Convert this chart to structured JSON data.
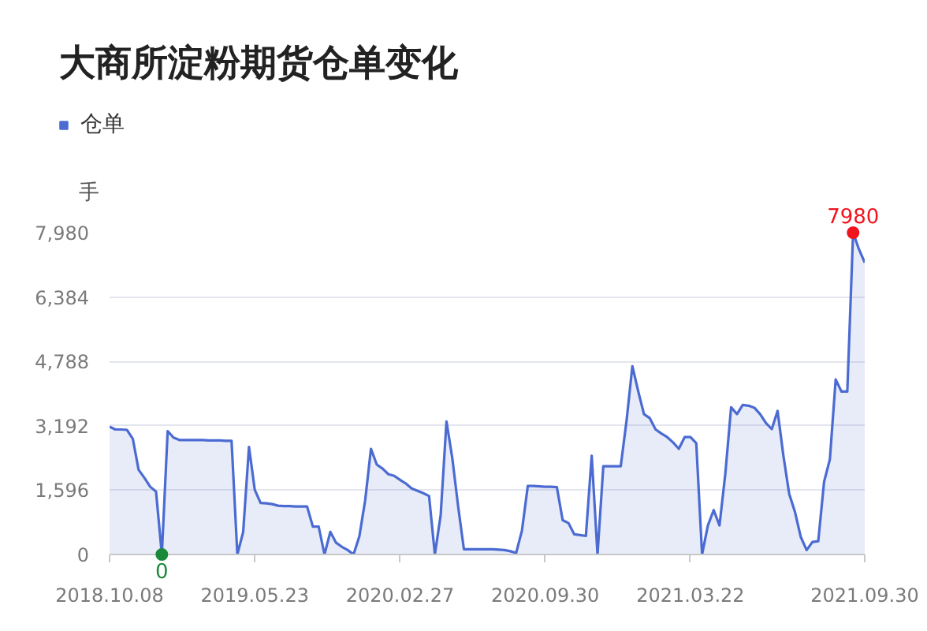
{
  "chart_data": {
    "type": "area",
    "title": "大商所淀粉期货仓单变化",
    "ylabel": "手",
    "categories": [
      "2018.10.08",
      null,
      null,
      null,
      null,
      null,
      null,
      null,
      null,
      null,
      null,
      null,
      null,
      null,
      null,
      null,
      null,
      null,
      null,
      null,
      null,
      null,
      null,
      null,
      null,
      "2019.05.23",
      null,
      null,
      null,
      null,
      null,
      null,
      null,
      null,
      null,
      null,
      null,
      null,
      null,
      null,
      null,
      null,
      null,
      null,
      null,
      null,
      null,
      null,
      null,
      null,
      "2020.02.27",
      null,
      null,
      null,
      null,
      null,
      null,
      null,
      null,
      null,
      null,
      null,
      null,
      null,
      null,
      null,
      null,
      null,
      null,
      null,
      null,
      null,
      null,
      null,
      null,
      "2020.09.30",
      null,
      null,
      null,
      null,
      null,
      null,
      null,
      null,
      null,
      null,
      null,
      null,
      null,
      null,
      null,
      null,
      null,
      null,
      null,
      null,
      null,
      null,
      null,
      null,
      "2021.03.22",
      null,
      null,
      null,
      null,
      null,
      null,
      null,
      null,
      null,
      null,
      null,
      null,
      null,
      null,
      null,
      null,
      null,
      null,
      null,
      null,
      null,
      null,
      null,
      null,
      null,
      null,
      null,
      null,
      null,
      "2021.09.30"
    ],
    "series": [
      {
        "name": "仓单",
        "color": "#4b6bd2",
        "values": [
          3170,
          3100,
          3100,
          3090,
          2870,
          2100,
          1900,
          1680,
          1560,
          0,
          3060,
          2900,
          2840,
          2840,
          2840,
          2840,
          2840,
          2830,
          2830,
          2830,
          2820,
          2820,
          0,
          560,
          2670,
          1600,
          1280,
          1270,
          1250,
          1210,
          1200,
          1200,
          1190,
          1190,
          1190,
          690,
          690,
          0,
          560,
          290,
          190,
          110,
          0,
          450,
          1340,
          2620,
          2230,
          2130,
          1990,
          1950,
          1850,
          1760,
          1640,
          1580,
          1520,
          1450,
          0,
          980,
          3300,
          2390,
          1200,
          130,
          130,
          130,
          130,
          130,
          130,
          120,
          110,
          80,
          40,
          600,
          1700,
          1700,
          1690,
          1680,
          1680,
          1670,
          850,
          780,
          500,
          480,
          460,
          2450,
          0,
          2190,
          2190,
          2190,
          2190,
          3320,
          4670,
          4050,
          3480,
          3380,
          3100,
          3000,
          2910,
          2780,
          2620,
          2910,
          2910,
          2760,
          0,
          720,
          1100,
          720,
          2000,
          3650,
          3480,
          3710,
          3690,
          3640,
          3480,
          3260,
          3110,
          3560,
          2450,
          1500,
          1050,
          430,
          110,
          310,
          330,
          1800,
          2360,
          4340,
          4040,
          4040,
          7980,
          7570,
          7240
        ]
      }
    ],
    "ylim": [
      0,
      7980
    ],
    "yticks": [
      0,
      {
        "value": 1596,
        "label": "1,596"
      },
      {
        "value": 3192,
        "label": "3,192"
      },
      {
        "value": 4788,
        "label": "4,788"
      },
      {
        "value": 6384,
        "label": "6,384"
      },
      {
        "value": 7980,
        "label": "7,980"
      }
    ],
    "grid": "y",
    "legend": "top left",
    "annotations": [
      {
        "text": "7980",
        "y": 7980
      },
      {
        "text": "0",
        "y": 0
      }
    ]
  }
}
